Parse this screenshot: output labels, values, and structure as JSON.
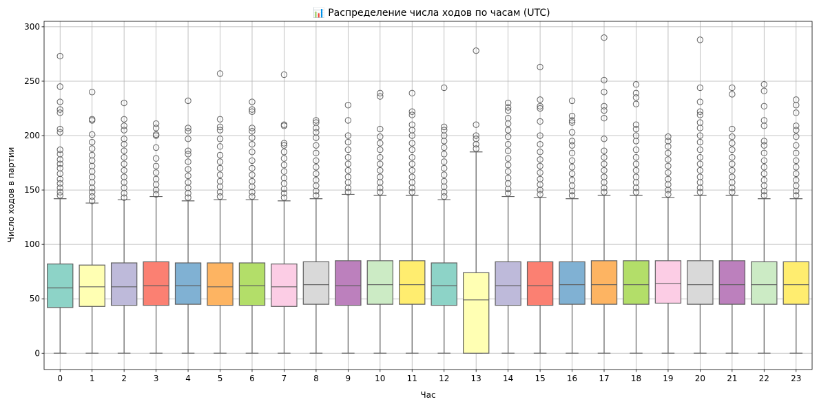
{
  "chart_data": {
    "type": "box",
    "title": "📊 Распределение числа ходов по часам (UTC)",
    "xlabel": "Час",
    "ylabel": "Число ходов в партии",
    "ylim": [
      -15,
      305
    ],
    "yticks": [
      0,
      50,
      100,
      150,
      200,
      250,
      300
    ],
    "grid": true,
    "categories": [
      "0",
      "1",
      "2",
      "3",
      "4",
      "5",
      "6",
      "7",
      "8",
      "9",
      "10",
      "11",
      "12",
      "13",
      "14",
      "15",
      "16",
      "17",
      "18",
      "19",
      "20",
      "21",
      "22",
      "23"
    ],
    "colors": [
      "#8dd3c7",
      "#ffffb3",
      "#bebada",
      "#fb8072",
      "#80b1d3",
      "#fdb462",
      "#b3de69",
      "#fccde5",
      "#d9d9d9",
      "#bc80bd",
      "#ccebc5",
      "#ffed6f",
      "#8dd3c7",
      "#ffffb3",
      "#bebada",
      "#fb8072",
      "#80b1d3",
      "#fdb462",
      "#b3de69",
      "#fccde5",
      "#d9d9d9",
      "#bc80bd",
      "#ccebc5",
      "#ffed6f"
    ],
    "boxes": [
      {
        "hour": "0",
        "whislo": 0,
        "q1": 42,
        "med": 60,
        "q3": 82,
        "whishi": 142,
        "fliers": [
          145,
          148,
          152,
          156,
          160,
          165,
          170,
          174,
          178,
          183,
          187,
          203,
          206,
          221,
          224,
          231,
          245,
          273
        ]
      },
      {
        "hour": "1",
        "whislo": 0,
        "q1": 43,
        "med": 61,
        "q3": 81,
        "whishi": 138,
        "fliers": [
          140,
          144,
          148,
          152,
          157,
          162,
          167,
          172,
          177,
          182,
          188,
          194,
          201,
          214,
          215,
          240
        ]
      },
      {
        "hour": "2",
        "whislo": 0,
        "q1": 44,
        "med": 61,
        "q3": 83,
        "whishi": 141,
        "fliers": [
          143,
          147,
          152,
          157,
          162,
          168,
          174,
          180,
          186,
          192,
          197,
          205,
          209,
          215,
          230
        ]
      },
      {
        "hour": "3",
        "whislo": 0,
        "q1": 44,
        "med": 62,
        "q3": 84,
        "whishi": 144,
        "fliers": [
          146,
          150,
          155,
          160,
          166,
          172,
          179,
          189,
          200,
          201,
          207,
          211
        ]
      },
      {
        "hour": "4",
        "whislo": 0,
        "q1": 45,
        "med": 62,
        "q3": 83,
        "whishi": 140,
        "fliers": [
          143,
          147,
          152,
          157,
          163,
          169,
          176,
          183,
          186,
          197,
          204,
          207,
          232
        ]
      },
      {
        "hour": "5",
        "whislo": 0,
        "q1": 44,
        "med": 61,
        "q3": 83,
        "whishi": 141,
        "fliers": [
          144,
          148,
          153,
          158,
          164,
          170,
          176,
          182,
          190,
          197,
          205,
          208,
          215,
          257
        ]
      },
      {
        "hour": "6",
        "whislo": 0,
        "q1": 44,
        "med": 62,
        "q3": 83,
        "whishi": 141,
        "fliers": [
          144,
          148,
          153,
          158,
          164,
          170,
          177,
          185,
          192,
          198,
          204,
          207,
          222,
          224,
          231
        ]
      },
      {
        "hour": "7",
        "whislo": 0,
        "q1": 43,
        "med": 61,
        "q3": 82,
        "whishi": 140,
        "fliers": [
          143,
          147,
          151,
          156,
          161,
          167,
          173,
          179,
          185,
          191,
          193,
          209,
          210,
          256
        ]
      },
      {
        "hour": "8",
        "whislo": 0,
        "q1": 45,
        "med": 63,
        "q3": 84,
        "whishi": 142,
        "fliers": [
          145,
          149,
          154,
          159,
          165,
          171,
          177,
          184,
          191,
          198,
          203,
          207,
          212,
          214
        ]
      },
      {
        "hour": "9",
        "whislo": 0,
        "q1": 44,
        "med": 62,
        "q3": 85,
        "whishi": 146,
        "fliers": [
          148,
          152,
          157,
          162,
          168,
          174,
          180,
          187,
          194,
          200,
          214,
          228
        ]
      },
      {
        "hour": "10",
        "whislo": 0,
        "q1": 45,
        "med": 63,
        "q3": 85,
        "whishi": 145,
        "fliers": [
          148,
          152,
          157,
          162,
          168,
          174,
          180,
          187,
          193,
          199,
          206,
          236,
          239
        ]
      },
      {
        "hour": "11",
        "whislo": 0,
        "q1": 45,
        "med": 63,
        "q3": 85,
        "whishi": 145,
        "fliers": [
          148,
          152,
          157,
          162,
          168,
          174,
          180,
          187,
          193,
          200,
          205,
          210,
          219,
          222,
          239
        ]
      },
      {
        "hour": "12",
        "whislo": 0,
        "q1": 44,
        "med": 62,
        "q3": 83,
        "whishi": 141,
        "fliers": [
          144,
          148,
          153,
          158,
          164,
          170,
          176,
          183,
          189,
          195,
          200,
          205,
          208,
          244
        ]
      },
      {
        "hour": "13",
        "whislo": 0,
        "q1": 0,
        "med": 49,
        "q3": 74,
        "whishi": 185,
        "fliers": [
          188,
          192,
          197,
          200,
          210,
          278
        ]
      },
      {
        "hour": "14",
        "whislo": 0,
        "q1": 44,
        "med": 62,
        "q3": 84,
        "whishi": 144,
        "fliers": [
          147,
          151,
          156,
          161,
          167,
          173,
          179,
          186,
          192,
          199,
          205,
          211,
          216,
          223,
          226,
          230
        ]
      },
      {
        "hour": "15",
        "whislo": 0,
        "q1": 44,
        "med": 62,
        "q3": 84,
        "whishi": 143,
        "fliers": [
          146,
          150,
          155,
          160,
          166,
          172,
          178,
          185,
          192,
          200,
          213,
          225,
          227,
          233,
          263
        ]
      },
      {
        "hour": "16",
        "whislo": 0,
        "q1": 45,
        "med": 63,
        "q3": 84,
        "whishi": 142,
        "fliers": [
          145,
          149,
          154,
          159,
          165,
          171,
          177,
          184,
          191,
          195,
          203,
          212,
          214,
          218,
          232
        ]
      },
      {
        "hour": "17",
        "whislo": 0,
        "q1": 45,
        "med": 63,
        "q3": 85,
        "whishi": 145,
        "fliers": [
          148,
          152,
          157,
          162,
          168,
          174,
          180,
          186,
          197,
          216,
          223,
          227,
          240,
          251,
          290
        ]
      },
      {
        "hour": "18",
        "whislo": 0,
        "q1": 45,
        "med": 63,
        "q3": 85,
        "whishi": 145,
        "fliers": [
          148,
          152,
          157,
          162,
          168,
          174,
          180,
          187,
          195,
          200,
          206,
          210,
          229,
          235,
          239,
          247
        ]
      },
      {
        "hour": "19",
        "whislo": 0,
        "q1": 46,
        "med": 64,
        "q3": 85,
        "whishi": 143,
        "fliers": [
          146,
          150,
          155,
          160,
          166,
          172,
          178,
          184,
          190,
          195,
          199
        ]
      },
      {
        "hour": "20",
        "whislo": 0,
        "q1": 45,
        "med": 63,
        "q3": 85,
        "whishi": 145,
        "fliers": [
          148,
          152,
          157,
          162,
          168,
          174,
          180,
          187,
          194,
          200,
          207,
          212,
          219,
          222,
          231,
          244,
          288
        ]
      },
      {
        "hour": "21",
        "whislo": 0,
        "q1": 45,
        "med": 63,
        "q3": 85,
        "whishi": 145,
        "fliers": [
          148,
          152,
          157,
          162,
          168,
          174,
          180,
          187,
          193,
          199,
          206,
          238,
          244
        ]
      },
      {
        "hour": "22",
        "whislo": 0,
        "q1": 45,
        "med": 63,
        "q3": 84,
        "whishi": 142,
        "fliers": [
          145,
          149,
          154,
          159,
          165,
          171,
          177,
          184,
          191,
          195,
          209,
          214,
          227,
          241,
          247
        ]
      },
      {
        "hour": "23",
        "whislo": 0,
        "q1": 45,
        "med": 63,
        "q3": 84,
        "whishi": 142,
        "fliers": [
          145,
          149,
          154,
          159,
          165,
          171,
          177,
          184,
          191,
          199,
          205,
          209,
          221,
          228,
          233
        ]
      }
    ]
  }
}
